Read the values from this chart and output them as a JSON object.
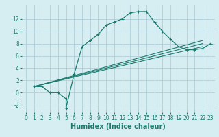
{
  "xlabel": "Humidex (Indice chaleur)",
  "background_color": "#d6eef2",
  "grid_color": "#b0cdd8",
  "line_color": "#1a7a6e",
  "xlim": [
    -0.5,
    23.5
  ],
  "ylim": [
    -3.2,
    14.2
  ],
  "xticks": [
    0,
    1,
    2,
    3,
    4,
    5,
    6,
    7,
    8,
    9,
    10,
    11,
    12,
    13,
    14,
    15,
    16,
    17,
    18,
    19,
    20,
    21,
    22,
    23
  ],
  "yticks": [
    -2,
    0,
    2,
    4,
    6,
    8,
    10,
    12
  ],
  "line1_x": [
    1,
    2,
    3,
    4,
    5,
    5,
    6,
    7,
    8,
    9,
    10,
    11,
    12,
    13,
    14,
    15,
    16,
    17,
    18,
    19,
    20,
    21,
    22,
    23
  ],
  "line1_y": [
    1,
    1,
    0,
    0,
    -1,
    -2.5,
    3,
    7.5,
    8.5,
    9.5,
    11,
    11.5,
    12,
    13,
    13.2,
    13.2,
    11.5,
    10,
    8.7,
    7.5,
    7,
    7,
    7.2,
    8
  ],
  "line2_x": [
    1,
    22
  ],
  "line2_y": [
    1,
    7.5
  ],
  "line3_x": [
    1,
    22
  ],
  "line3_y": [
    1,
    8.0
  ],
  "line4_x": [
    1,
    22
  ],
  "line4_y": [
    1,
    8.5
  ],
  "tick_fontsize": 5.5,
  "xlabel_fontsize": 7.0
}
